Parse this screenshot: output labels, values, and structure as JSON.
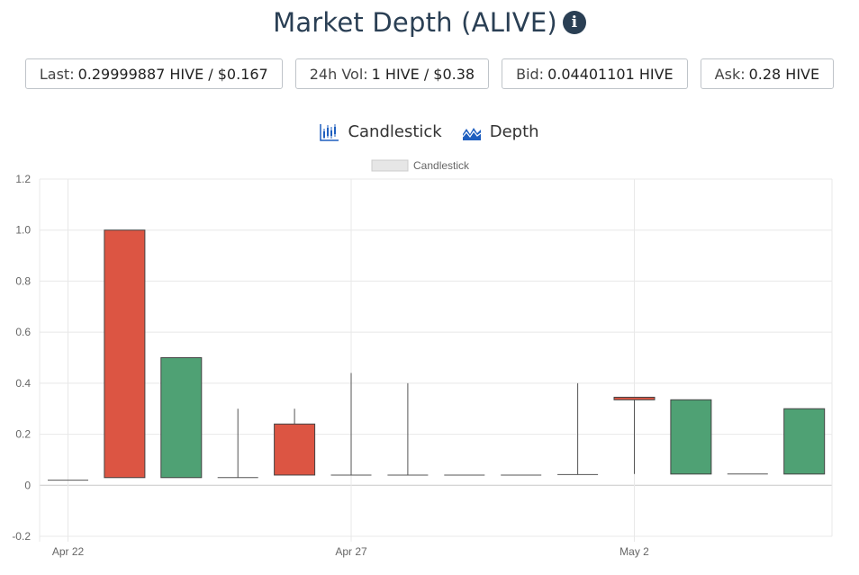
{
  "header": {
    "title": "Market Depth (ALIVE)",
    "info_glyph": "i"
  },
  "stats": {
    "last_label": "Last:",
    "last_value": "0.29999887 HIVE / $0.167",
    "vol_label": "24h Vol:",
    "vol_value": "1 HIVE / $0.38",
    "bid_label": "Bid:",
    "bid_value": "0.04401101 HIVE",
    "ask_label": "Ask:",
    "ask_value": "0.28 HIVE"
  },
  "tabs": {
    "candlestick": "Candlestick",
    "depth": "Depth"
  },
  "icons": {
    "candlestick": "candlestick-chart-icon",
    "depth": "depth-chart-icon",
    "info": "info-icon"
  },
  "colors": {
    "up": "#4fa174",
    "down": "#dc5543",
    "title": "#2a3f54",
    "depth_icon": "#1f5fbf"
  },
  "chart_data": {
    "type": "candlestick",
    "legend": [
      "Candlestick"
    ],
    "legend_position": "top",
    "grid": true,
    "ylim": [
      -0.2,
      1.2
    ],
    "y_ticks": [
      -0.2,
      0,
      0.2,
      0.4,
      0.6,
      0.8,
      1.0,
      1.2
    ],
    "y_tick_labels": [
      "-0.2",
      "0",
      "0.2",
      "0.4",
      "0.6",
      "0.8",
      "1.0",
      "1.2"
    ],
    "x_ticks": [
      {
        "label": "Apr 22",
        "day": 0
      },
      {
        "label": "Apr 27",
        "day": 5
      },
      {
        "label": "May 2",
        "day": 10
      }
    ],
    "candles": [
      {
        "date": "Apr 22",
        "open": 0.02,
        "high": 0.02,
        "low": 0.02,
        "close": 0.02
      },
      {
        "date": "Apr 23",
        "open": 0.03,
        "high": 1.0,
        "low": 0.03,
        "close": 1.0
      },
      {
        "date": "Apr 24",
        "open": 0.5,
        "high": 0.5,
        "low": 0.03,
        "close": 0.03
      },
      {
        "date": "Apr 25",
        "open": 0.03,
        "high": 0.3,
        "low": 0.03,
        "close": 0.03
      },
      {
        "date": "Apr 26",
        "open": 0.04,
        "high": 0.3,
        "low": 0.04,
        "close": 0.24
      },
      {
        "date": "Apr 27",
        "open": 0.04,
        "high": 0.44,
        "low": 0.04,
        "close": 0.04
      },
      {
        "date": "Apr 28",
        "open": 0.04,
        "high": 0.4,
        "low": 0.04,
        "close": 0.04
      },
      {
        "date": "Apr 29",
        "open": 0.04,
        "high": 0.04,
        "low": 0.04,
        "close": 0.04
      },
      {
        "date": "Apr 30",
        "open": 0.04,
        "high": 0.04,
        "low": 0.04,
        "close": 0.04
      },
      {
        "date": "May 1",
        "open": 0.042,
        "high": 0.4,
        "low": 0.042,
        "close": 0.042
      },
      {
        "date": "May 2",
        "open": 0.335,
        "high": 0.345,
        "low": 0.044,
        "close": 0.345
      },
      {
        "date": "May 3",
        "open": 0.335,
        "high": 0.335,
        "low": 0.044,
        "close": 0.044
      },
      {
        "date": "May 4",
        "open": 0.044,
        "high": 0.044,
        "low": 0.044,
        "close": 0.044
      },
      {
        "date": "May 5",
        "open": 0.3,
        "high": 0.3,
        "low": 0.044,
        "close": 0.044
      }
    ]
  }
}
